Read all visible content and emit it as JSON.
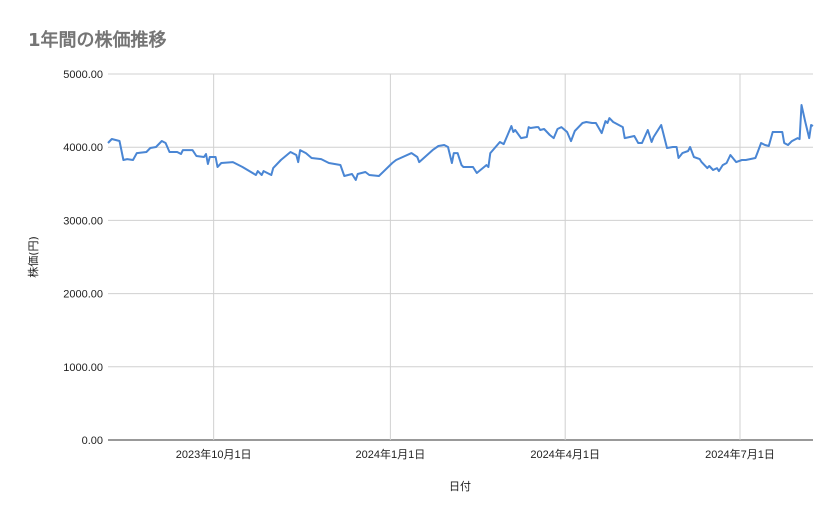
{
  "chart_data": {
    "type": "line",
    "title": "1年間の株価推移",
    "xlabel": "日付",
    "ylabel": "株価(円)",
    "xlim": [
      "2023-08-07",
      "2024-08-08"
    ],
    "ylim": [
      0,
      5000
    ],
    "yticks": [
      0,
      1000,
      2000,
      3000,
      4000,
      5000
    ],
    "ytick_labels": [
      "0.00",
      "1000.00",
      "2000.00",
      "3000.00",
      "4000.00",
      "5000.00"
    ],
    "xticks": [
      "2023-10-01",
      "2024-01-01",
      "2024-04-01",
      "2024-07-01"
    ],
    "xtick_labels": [
      "2023年10月1日",
      "2024年1月1日",
      "2024年4月1日",
      "2024年7月1日"
    ],
    "grid": true,
    "color": "#4a86d4",
    "x": [
      "2023-08-07",
      "2023-08-09",
      "2023-08-13",
      "2023-08-15",
      "2023-08-17",
      "2023-08-20",
      "2023-08-22",
      "2023-08-27",
      "2023-08-29",
      "2023-09-01",
      "2023-09-04",
      "2023-09-06",
      "2023-09-08",
      "2023-09-12",
      "2023-09-14",
      "2023-09-15",
      "2023-09-20",
      "2023-09-22",
      "2023-09-26",
      "2023-09-27",
      "2023-09-28",
      "2023-09-29",
      "2023-10-02",
      "2023-10-03",
      "2023-10-05",
      "2023-10-11",
      "2023-10-16",
      "2023-10-23",
      "2023-10-24",
      "2023-10-26",
      "2023-10-27",
      "2023-10-31",
      "2023-11-01",
      "2023-11-05",
      "2023-11-10",
      "2023-11-13",
      "2023-11-14",
      "2023-11-15",
      "2023-11-18",
      "2023-11-21",
      "2023-11-26",
      "2023-11-30",
      "2023-12-06",
      "2023-12-08",
      "2023-12-12",
      "2023-12-14",
      "2023-12-15",
      "2023-12-19",
      "2023-12-21",
      "2023-12-26",
      "2024-01-02",
      "2024-01-04",
      "2024-01-12",
      "2024-01-15",
      "2024-01-16",
      "2024-01-23",
      "2024-01-26",
      "2024-01-29",
      "2024-01-31",
      "2024-02-02",
      "2024-02-03",
      "2024-02-05",
      "2024-02-07",
      "2024-02-08",
      "2024-02-13",
      "2024-02-15",
      "2024-02-20",
      "2024-02-21",
      "2024-02-22",
      "2024-02-27",
      "2024-02-29",
      "2024-03-02",
      "2024-03-04",
      "2024-03-05",
      "2024-03-06",
      "2024-03-09",
      "2024-03-12",
      "2024-03-13",
      "2024-03-14",
      "2024-03-17",
      "2024-03-18",
      "2024-03-19",
      "2024-03-21",
      "2024-03-24",
      "2024-03-26",
      "2024-03-28",
      "2024-03-30",
      "2024-04-02",
      "2024-04-04",
      "2024-04-06",
      "2024-04-10",
      "2024-04-12",
      "2024-04-15",
      "2024-04-17",
      "2024-04-20",
      "2024-04-22",
      "2024-04-23",
      "2024-04-24",
      "2024-04-26",
      "2024-05-01",
      "2024-05-02",
      "2024-05-07",
      "2024-05-09",
      "2024-05-11",
      "2024-05-14",
      "2024-05-16",
      "2024-05-17",
      "2024-05-21",
      "2024-05-24",
      "2024-05-27",
      "2024-05-29",
      "2024-05-30",
      "2024-06-01",
      "2024-06-04",
      "2024-06-05",
      "2024-06-07",
      "2024-06-10",
      "2024-06-11",
      "2024-06-14",
      "2024-06-15",
      "2024-06-17",
      "2024-06-19",
      "2024-06-20",
      "2024-06-22",
      "2024-06-24",
      "2024-06-26",
      "2024-06-29",
      "2024-07-02",
      "2024-07-04",
      "2024-07-09",
      "2024-07-10",
      "2024-07-12",
      "2024-07-14",
      "2024-07-16",
      "2024-07-18",
      "2024-07-23",
      "2024-07-24",
      "2024-07-26",
      "2024-07-28",
      "2024-07-31",
      "2024-08-01",
      "2024-08-02",
      "2024-08-04",
      "2024-08-06",
      "2024-08-07",
      "2024-08-08"
    ],
    "y": [
      4057,
      4112,
      4085,
      3825,
      3838,
      3825,
      3920,
      3934,
      3989,
      4003,
      4085,
      4057,
      3934,
      3934,
      3907,
      3961,
      3961,
      3880,
      3866,
      3907,
      3770,
      3866,
      3866,
      3729,
      3784,
      3797,
      3729,
      3620,
      3674,
      3620,
      3674,
      3620,
      3715,
      3825,
      3934,
      3893,
      3797,
      3961,
      3920,
      3852,
      3838,
      3784,
      3757,
      3606,
      3634,
      3552,
      3634,
      3661,
      3620,
      3606,
      3784,
      3825,
      3920,
      3866,
      3797,
      3961,
      4016,
      4030,
      4003,
      3784,
      3920,
      3920,
      3756,
      3729,
      3729,
      3647,
      3756,
      3729,
      3920,
      4071,
      4043,
      4166,
      4289,
      4207,
      4235,
      4125,
      4139,
      4275,
      4262,
      4275,
      4275,
      4235,
      4248,
      4166,
      4125,
      4248,
      4275,
      4207,
      4084,
      4221,
      4330,
      4344,
      4330,
      4330,
      4193,
      4357,
      4330,
      4398,
      4344,
      4275,
      4125,
      4153,
      4057,
      4057,
      4235,
      4071,
      4139,
      4303,
      3989,
      4003,
      4003,
      3852,
      3920,
      3948,
      4003,
      3866,
      3838,
      3797,
      3715,
      3743,
      3688,
      3715,
      3674,
      3756,
      3784,
      3893,
      3797,
      3825,
      3825,
      3852,
      3920,
      4057,
      4030,
      4016,
      4207,
      4207,
      4057,
      4030,
      4084,
      4125,
      4110,
      4576,
      4344,
      4125,
      4303,
      4289
    ]
  }
}
